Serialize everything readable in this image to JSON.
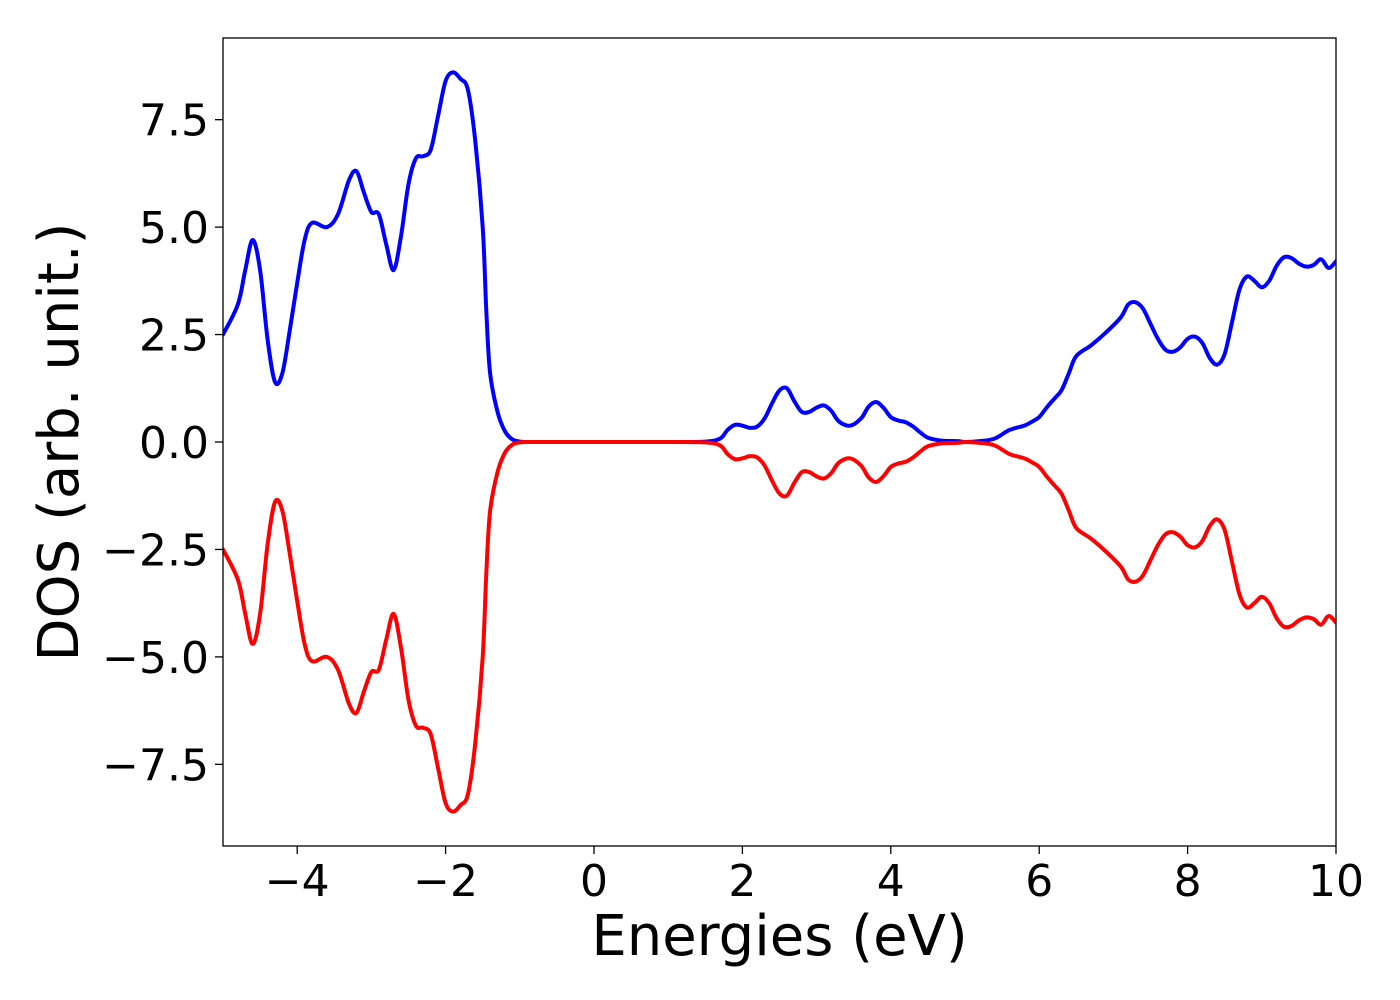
{
  "chart_data": {
    "type": "line",
    "title": "",
    "xlabel": "Energies (eV)",
    "ylabel": "DOS (arb. unit.)",
    "xlim": [
      -5,
      10
    ],
    "ylim": [
      -9.4,
      9.4
    ],
    "xticks": [
      -4,
      -2,
      0,
      2,
      4,
      6,
      8,
      10
    ],
    "xtick_labels": [
      "−4",
      "−2",
      "0",
      "2",
      "4",
      "6",
      "8",
      "10"
    ],
    "yticks": [
      -7.5,
      -5.0,
      -2.5,
      0.0,
      2.5,
      5.0,
      7.5
    ],
    "ytick_labels": [
      "−7.5",
      "−5.0",
      "−2.5",
      "0.0",
      "2.5",
      "5.0",
      "7.5"
    ],
    "grid": false,
    "legend": "none",
    "series": [
      {
        "color": "#0000ff",
        "x": [
          -5.0,
          -4.8,
          -4.7,
          -4.6,
          -4.5,
          -4.4,
          -4.3,
          -4.2,
          -4.1,
          -4.0,
          -3.9,
          -3.8,
          -3.6,
          -3.45,
          -3.3,
          -3.2,
          -3.1,
          -3.0,
          -2.9,
          -2.8,
          -2.7,
          -2.6,
          -2.5,
          -2.4,
          -2.3,
          -2.2,
          -2.1,
          -2.0,
          -1.9,
          -1.8,
          -1.7,
          -1.6,
          -1.5,
          -1.45,
          -1.4,
          -1.3,
          -1.2,
          -1.1,
          -1.0,
          -0.9,
          -0.8,
          -0.7,
          -0.6,
          -0.5,
          0.0,
          1.0,
          1.5,
          1.7,
          1.8,
          1.9,
          2.0,
          2.1,
          2.2,
          2.3,
          2.4,
          2.5,
          2.6,
          2.7,
          2.8,
          2.9,
          3.0,
          3.1,
          3.2,
          3.3,
          3.45,
          3.6,
          3.7,
          3.8,
          3.9,
          4.0,
          4.1,
          4.2,
          4.3,
          4.4,
          4.5,
          4.7,
          4.9,
          5.0,
          5.2,
          5.4,
          5.6,
          5.8,
          5.9,
          6.0,
          6.1,
          6.2,
          6.3,
          6.4,
          6.5,
          6.7,
          6.9,
          7.1,
          7.2,
          7.3,
          7.4,
          7.5,
          7.6,
          7.7,
          7.8,
          7.9,
          8.0,
          8.1,
          8.2,
          8.3,
          8.4,
          8.5,
          8.6,
          8.7,
          8.8,
          8.9,
          9.0,
          9.1,
          9.2,
          9.3,
          9.4,
          9.5,
          9.6,
          9.7,
          9.8,
          9.9,
          10.0
        ],
        "y": [
          2.5,
          3.2,
          4.0,
          4.7,
          4.0,
          2.4,
          1.4,
          1.6,
          2.6,
          3.7,
          4.7,
          5.1,
          5.0,
          5.3,
          6.1,
          6.3,
          5.8,
          5.35,
          5.3,
          4.6,
          4.0,
          4.8,
          6.0,
          6.6,
          6.65,
          6.8,
          7.6,
          8.4,
          8.6,
          8.45,
          8.2,
          7.0,
          5.0,
          3.0,
          1.6,
          0.7,
          0.25,
          0.06,
          0.01,
          0.0,
          0.0,
          0.0,
          0.0,
          0.0,
          0.0,
          0.0,
          0.01,
          0.08,
          0.28,
          0.4,
          0.38,
          0.33,
          0.36,
          0.55,
          0.9,
          1.2,
          1.25,
          0.95,
          0.7,
          0.7,
          0.8,
          0.85,
          0.72,
          0.48,
          0.38,
          0.55,
          0.82,
          0.93,
          0.8,
          0.58,
          0.5,
          0.46,
          0.36,
          0.22,
          0.1,
          0.03,
          0.02,
          0.0,
          0.02,
          0.08,
          0.28,
          0.38,
          0.47,
          0.58,
          0.8,
          1.0,
          1.2,
          1.6,
          2.0,
          2.25,
          2.55,
          2.9,
          3.2,
          3.25,
          3.1,
          2.75,
          2.4,
          2.15,
          2.1,
          2.2,
          2.4,
          2.45,
          2.3,
          1.95,
          1.8,
          2.05,
          2.8,
          3.55,
          3.85,
          3.75,
          3.6,
          3.75,
          4.1,
          4.3,
          4.28,
          4.15,
          4.08,
          4.12,
          4.25,
          4.05,
          4.2
        ]
      },
      {
        "color": "#ff0000",
        "x": [
          -5.0,
          -4.8,
          -4.7,
          -4.6,
          -4.5,
          -4.4,
          -4.3,
          -4.2,
          -4.1,
          -4.0,
          -3.9,
          -3.8,
          -3.6,
          -3.45,
          -3.3,
          -3.2,
          -3.1,
          -3.0,
          -2.9,
          -2.8,
          -2.7,
          -2.6,
          -2.5,
          -2.4,
          -2.3,
          -2.2,
          -2.1,
          -2.0,
          -1.9,
          -1.8,
          -1.7,
          -1.6,
          -1.5,
          -1.45,
          -1.4,
          -1.3,
          -1.2,
          -1.1,
          -1.0,
          -0.9,
          -0.8,
          -0.7,
          -0.6,
          -0.5,
          0.0,
          1.0,
          1.5,
          1.7,
          1.8,
          1.9,
          2.0,
          2.1,
          2.2,
          2.3,
          2.4,
          2.5,
          2.6,
          2.7,
          2.8,
          2.9,
          3.0,
          3.1,
          3.2,
          3.3,
          3.45,
          3.6,
          3.7,
          3.8,
          3.9,
          4.0,
          4.1,
          4.2,
          4.3,
          4.4,
          4.5,
          4.7,
          4.9,
          5.0,
          5.2,
          5.4,
          5.6,
          5.8,
          5.9,
          6.0,
          6.1,
          6.2,
          6.3,
          6.4,
          6.5,
          6.7,
          6.9,
          7.1,
          7.2,
          7.3,
          7.4,
          7.5,
          7.6,
          7.7,
          7.8,
          7.9,
          8.0,
          8.1,
          8.2,
          8.3,
          8.4,
          8.5,
          8.6,
          8.7,
          8.8,
          8.9,
          9.0,
          9.1,
          9.2,
          9.3,
          9.4,
          9.5,
          9.6,
          9.7,
          9.8,
          9.9,
          10.0
        ],
        "y": [
          -2.5,
          -3.2,
          -4.0,
          -4.7,
          -4.0,
          -2.4,
          -1.4,
          -1.6,
          -2.6,
          -3.7,
          -4.7,
          -5.1,
          -5.0,
          -5.3,
          -6.1,
          -6.3,
          -5.8,
          -5.35,
          -5.3,
          -4.6,
          -4.0,
          -4.8,
          -6.0,
          -6.6,
          -6.65,
          -6.8,
          -7.6,
          -8.4,
          -8.6,
          -8.45,
          -8.2,
          -7.0,
          -5.0,
          -3.0,
          -1.6,
          -0.7,
          -0.25,
          -0.06,
          -0.01,
          0.0,
          0.0,
          0.0,
          0.0,
          0.0,
          0.0,
          0.0,
          -0.01,
          -0.08,
          -0.28,
          -0.4,
          -0.38,
          -0.33,
          -0.36,
          -0.55,
          -0.9,
          -1.2,
          -1.25,
          -0.95,
          -0.7,
          -0.7,
          -0.8,
          -0.85,
          -0.72,
          -0.48,
          -0.38,
          -0.55,
          -0.82,
          -0.93,
          -0.8,
          -0.58,
          -0.5,
          -0.46,
          -0.36,
          -0.22,
          -0.1,
          -0.03,
          -0.02,
          0.0,
          -0.02,
          -0.08,
          -0.28,
          -0.38,
          -0.47,
          -0.58,
          -0.8,
          -1.0,
          -1.2,
          -1.6,
          -2.0,
          -2.25,
          -2.55,
          -2.9,
          -3.2,
          -3.25,
          -3.1,
          -2.75,
          -2.4,
          -2.15,
          -2.1,
          -2.2,
          -2.4,
          -2.45,
          -2.3,
          -1.95,
          -1.8,
          -2.05,
          -2.8,
          -3.55,
          -3.85,
          -3.75,
          -3.6,
          -3.75,
          -4.1,
          -4.3,
          -4.28,
          -4.15,
          -4.08,
          -4.12,
          -4.25,
          -4.05,
          -4.2
        ]
      }
    ]
  }
}
